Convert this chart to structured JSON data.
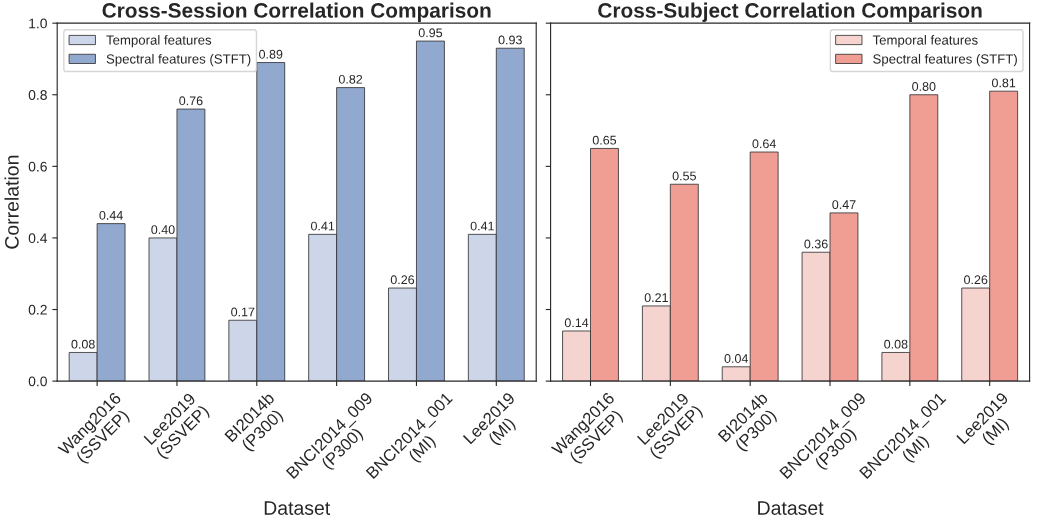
{
  "chart_data": [
    {
      "type": "bar",
      "title": "Cross-Session Correlation Comparison",
      "xlabel": "Dataset",
      "ylabel": "Correlation",
      "categories": [
        "Wang2016\n(SSVEP)",
        "Lee2019\n(SSVEP)",
        "BI2014b\n(P300)",
        "BNCI2014_009\n(P300)",
        "BNCI2014_001\n(MI)",
        "Lee2019\n(MI)"
      ],
      "series": [
        {
          "name": "Temporal features",
          "color": "#cdd5e8",
          "values": [
            0.08,
            0.4,
            0.17,
            0.41,
            0.26,
            0.41
          ],
          "value_labels": [
            "0.08",
            "0.40",
            "0.17",
            "0.41",
            "0.26",
            "0.41"
          ]
        },
        {
          "name": "Spectral features (STFT)",
          "color": "#91a8cf",
          "values": [
            0.44,
            0.76,
            0.89,
            0.82,
            0.95,
            0.93
          ],
          "value_labels": [
            "0.44",
            "0.76",
            "0.89",
            "0.82",
            "0.95",
            "0.93"
          ]
        }
      ],
      "ylim": [
        0,
        1
      ],
      "yticks": [
        "0.0",
        "0.2",
        "0.4",
        "0.6",
        "0.8",
        "1.0"
      ],
      "legend": "top left",
      "grid": false
    },
    {
      "type": "bar",
      "title": "Cross-Subject Correlation Comparison",
      "xlabel": "Dataset",
      "categories": [
        "Wang2016\n(SSVEP)",
        "Lee2019\n(SSVEP)",
        "BI2014b\n(P300)",
        "BNCI2014_009\n(P300)",
        "BNCI2014_001\n(MI)",
        "Lee2019\n(MI)"
      ],
      "series": [
        {
          "name": "Temporal features",
          "color": "#f5d3cf",
          "values": [
            0.14,
            0.21,
            0.04,
            0.36,
            0.08,
            0.26
          ],
          "value_labels": [
            "0.14",
            "0.21",
            "0.04",
            "0.36",
            "0.08",
            "0.26"
          ]
        },
        {
          "name": "Spectral features (STFT)",
          "color": "#f09e94",
          "values": [
            0.65,
            0.55,
            0.64,
            0.47,
            0.8,
            0.81
          ],
          "value_labels": [
            "0.65",
            "0.55",
            "0.64",
            "0.47",
            "0.80",
            "0.81"
          ]
        }
      ],
      "ylim": [
        0,
        1
      ],
      "yticks": [
        0,
        0.2,
        0.4,
        0.6,
        0.8,
        1.0
      ],
      "tick_labels": "x",
      "legend": "top right",
      "grid": false
    }
  ]
}
